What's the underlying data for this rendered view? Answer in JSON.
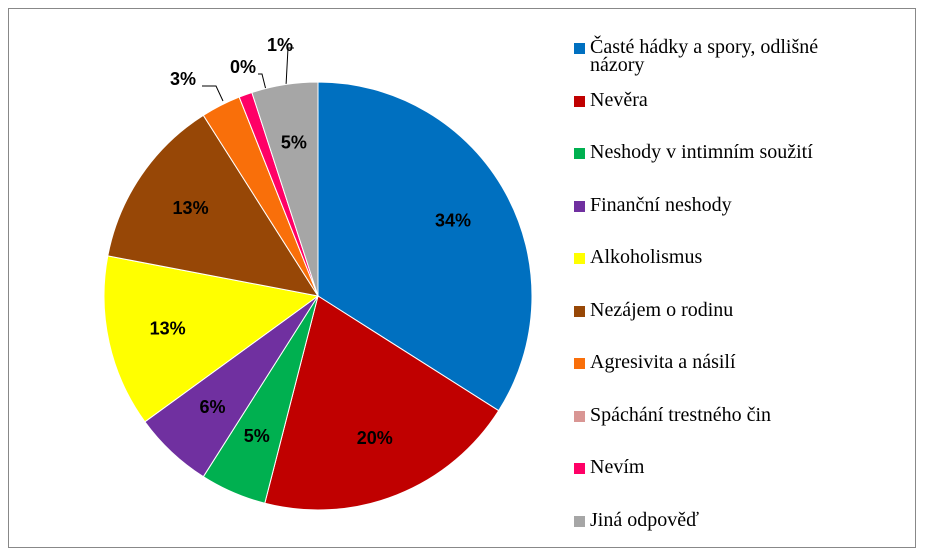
{
  "chart_data": {
    "type": "pie",
    "categories": [
      "Časté hádky a spory, odlišné názory",
      "Nevěra",
      "Neshody v intimním soužití",
      "Finanční neshody",
      "Alkoholismus",
      "Nezájem o rodinu",
      "Agresivita a násilí",
      "Spáchání trestného čin",
      "Nevím",
      "Jiná odpověď"
    ],
    "values": [
      34,
      20,
      5,
      6,
      13,
      13,
      3,
      0,
      1,
      5
    ],
    "value_labels": [
      "34%",
      "20%",
      "5%",
      "6%",
      "13%",
      "13%",
      "3%",
      "0%",
      "1%",
      "5%"
    ],
    "colors": [
      "#0070C0",
      "#C00000",
      "#00B050",
      "#7030A0",
      "#FFFF00",
      "#974706",
      "#F96F0A",
      "#D99694",
      "#FF0066",
      "#A6A6A6"
    ],
    "legend": "right"
  }
}
